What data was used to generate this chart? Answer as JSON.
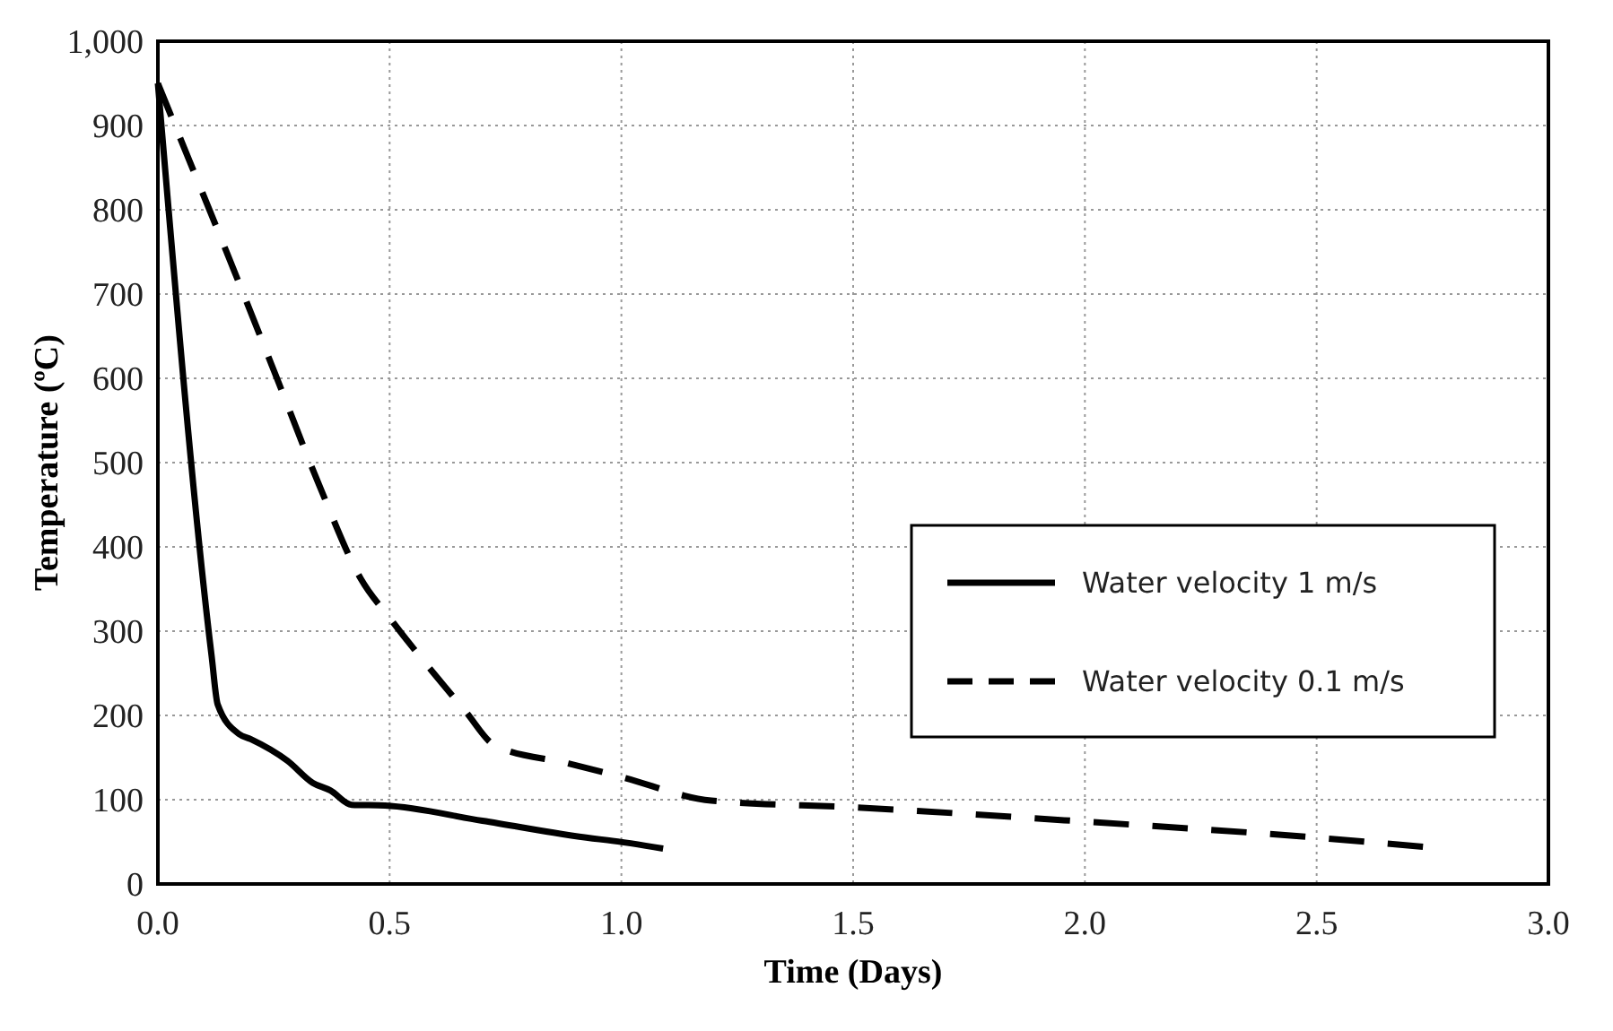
{
  "chart_data": {
    "type": "line",
    "xlabel": "Time (Days)",
    "ylabel": "Temperature (ºC)",
    "xlim": [
      0,
      3
    ],
    "xticks": [
      {
        "value": 0,
        "label": "0.0"
      },
      {
        "value": 0.5,
        "label": "0.5"
      },
      {
        "value": 1,
        "label": "1.0"
      },
      {
        "value": 1.5,
        "label": "1.5"
      },
      {
        "value": 2,
        "label": "2.0"
      },
      {
        "value": 2.5,
        "label": "2.5"
      },
      {
        "value": 3,
        "label": "3.0"
      }
    ],
    "ylim": [
      0,
      1000
    ],
    "yticks": [
      0,
      100,
      200,
      300,
      400,
      500,
      600,
      700,
      800,
      900,
      {
        "value": 1000,
        "label": "1,000"
      }
    ],
    "grid": true,
    "legend": "right",
    "series": [
      {
        "name": "Water velocity 1 m/s",
        "color": "#000000",
        "line_style": "solid",
        "x": [
          0,
          0.116,
          0.129,
          0.175,
          0.2,
          0.28,
          0.334,
          0.372,
          0.418,
          0.49,
          0.7,
          0.938,
          0.97,
          1.09
        ],
        "values": [
          950,
          270,
          213,
          178,
          172,
          146,
          120,
          111,
          94,
          93,
          75,
          54,
          52,
          42
        ]
      },
      {
        "name": "Water velocity 0.1 m/s",
        "color": "#000000",
        "line_style": "dashed",
        "x": [
          0,
          0.057,
          0.162,
          0.254,
          0.346,
          0.438,
          0.504,
          0.662,
          0.728,
          0.886,
          1.0,
          1.194,
          1.5,
          2.0,
          2.5,
          2.73
        ],
        "values": [
          950,
          873,
          731,
          604,
          476,
          362,
          313,
          206,
          164,
          143,
          127,
          99,
          91,
          74,
          55,
          44
        ]
      }
    ]
  }
}
